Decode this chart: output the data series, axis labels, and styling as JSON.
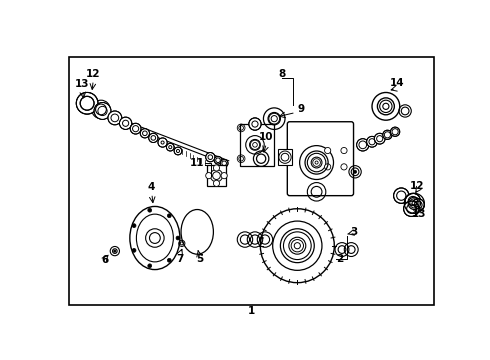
{
  "bg_color": "#ffffff",
  "border_color": "#000000",
  "line_color": "#000000",
  "fig_width": 4.9,
  "fig_height": 3.6,
  "dpi": 100
}
